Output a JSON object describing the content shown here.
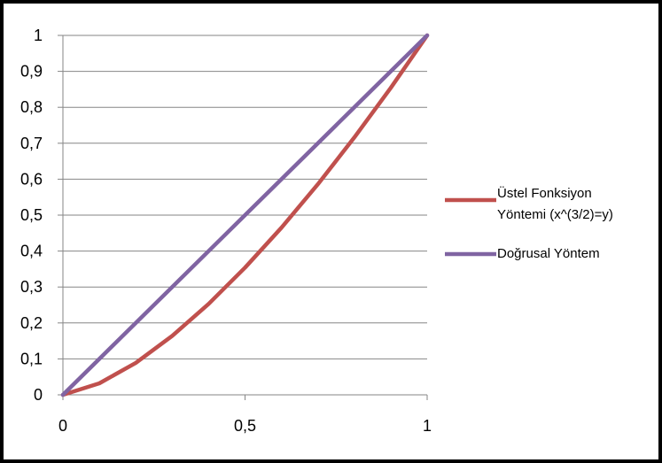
{
  "chart_data": {
    "type": "line",
    "title": "",
    "xlabel": "",
    "ylabel": "",
    "xlim": [
      0,
      1
    ],
    "ylim": [
      0,
      1
    ],
    "x_ticks": [
      0,
      0.5,
      1
    ],
    "x_tick_labels": [
      "0",
      "0,5",
      "1"
    ],
    "y_ticks": [
      0,
      0.1,
      0.2,
      0.3,
      0.4,
      0.5,
      0.6,
      0.7,
      0.8,
      0.9,
      1
    ],
    "y_tick_labels": [
      "0",
      "0,1",
      "0,2",
      "0,3",
      "0,4",
      "0,5",
      "0,6",
      "0,7",
      "0,8",
      "0,9",
      "1"
    ],
    "grid": "horizontal",
    "legend_position": "right",
    "series": [
      {
        "name_lines": [
          "Üstel Fonksiyon",
          "Yöntemi (x^(3/2)=y)"
        ],
        "color": "#c0504d",
        "x": [
          0,
          0.1,
          0.2,
          0.3,
          0.4,
          0.5,
          0.6,
          0.7,
          0.8,
          0.9,
          1
        ],
        "y": [
          0,
          0.032,
          0.089,
          0.164,
          0.253,
          0.354,
          0.465,
          0.586,
          0.716,
          0.854,
          1
        ]
      },
      {
        "name_lines": [
          "Doğrusal Yöntem"
        ],
        "color": "#8064a2",
        "x": [
          0,
          1
        ],
        "y": [
          0,
          1
        ]
      }
    ]
  }
}
